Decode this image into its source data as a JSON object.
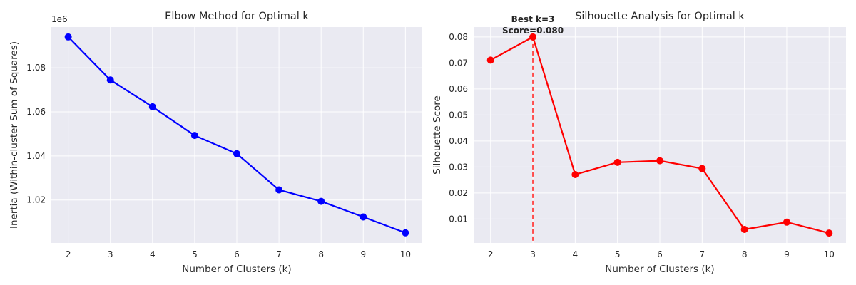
{
  "chart_data": [
    {
      "type": "line",
      "title": "Elbow Method for Optimal k",
      "xlabel": "Number of Clusters (k)",
      "ylabel": "Inertia (Within-cluster Sum of Squares)",
      "y_offset_label": "1e6",
      "x": [
        2,
        3,
        4,
        5,
        6,
        7,
        8,
        9,
        10
      ],
      "series": [
        {
          "values": [
            1094000,
            1074500,
            1062300,
            1049300,
            1041000,
            1024600,
            1019400,
            1012300,
            1005100
          ]
        }
      ],
      "xlim": [
        1.6,
        10.4
      ],
      "ylim": [
        1000500,
        1098500
      ],
      "xticks": [
        2,
        3,
        4,
        5,
        6,
        7,
        8,
        9,
        10
      ],
      "yticks": [
        1020000,
        1040000,
        1060000,
        1080000
      ],
      "ytick_labels": [
        "1.02",
        "1.04",
        "1.06",
        "1.08"
      ],
      "grid": true,
      "color": "#0000ff"
    },
    {
      "type": "line",
      "title": "Silhouette Analysis for Optimal k",
      "xlabel": "Number of Clusters (k)",
      "ylabel": "Silhouette Score",
      "x": [
        2,
        3,
        4,
        5,
        6,
        7,
        8,
        9,
        10
      ],
      "series": [
        {
          "values": [
            0.0711,
            0.08,
            0.0271,
            0.0318,
            0.0324,
            0.0294,
            0.006,
            0.0088,
            0.0046
          ]
        }
      ],
      "xlim": [
        1.6,
        10.4
      ],
      "ylim": [
        0.0008,
        0.0838
      ],
      "xticks": [
        2,
        3,
        4,
        5,
        6,
        7,
        8,
        9,
        10
      ],
      "yticks": [
        0.01,
        0.02,
        0.03,
        0.04,
        0.05,
        0.06,
        0.07,
        0.08
      ],
      "ytick_labels": [
        "0.01",
        "0.02",
        "0.03",
        "0.04",
        "0.05",
        "0.06",
        "0.07",
        "0.08"
      ],
      "grid": true,
      "color": "#ff0000",
      "best_k": {
        "x": 3,
        "line1": "Best k=3",
        "line2": "Score=0.080",
        "line_color": "#ff4d4d"
      }
    }
  ]
}
